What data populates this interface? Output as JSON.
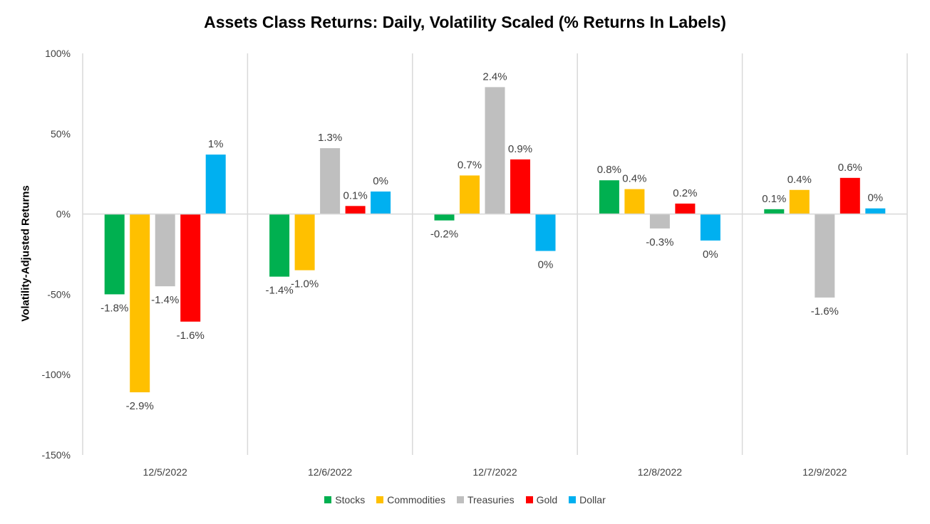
{
  "chart_data": {
    "type": "bar",
    "title": "Assets Class Returns: Daily, Volatility Scaled (% Returns In Labels)",
    "ylabel": "Volatility-Adjusted Returns",
    "xlabel": "",
    "categories": [
      "12/5/2022",
      "12/6/2022",
      "12/7/2022",
      "12/8/2022",
      "12/9/2022"
    ],
    "ylim": [
      -150,
      100
    ],
    "yticks": [
      100,
      50,
      0,
      -50,
      -100,
      -150
    ],
    "ytick_labels": [
      "100%",
      "50%",
      "0%",
      "-50%",
      "-100%",
      "-150%"
    ],
    "grid": false,
    "legend_position": "bottom",
    "series": [
      {
        "name": "Stocks",
        "color": "#00b050",
        "values": [
          -50,
          -39,
          -4,
          21,
          3
        ],
        "labels": [
          "-1.8%",
          "-1.4%",
          "-0.2%",
          "0.8%",
          "0.1%"
        ]
      },
      {
        "name": "Commodities",
        "color": "#ffc000",
        "values": [
          -111,
          -35,
          24,
          15.5,
          15
        ],
        "labels": [
          "-2.9%",
          "-1.0%",
          "0.7%",
          "0.4%",
          "0.4%"
        ]
      },
      {
        "name": "Treasuries",
        "color": "#bfbfbf",
        "values": [
          -45,
          41,
          79,
          -9,
          -52
        ],
        "labels": [
          "-1.4%",
          "1.3%",
          "2.4%",
          "-0.3%",
          "-1.6%"
        ]
      },
      {
        "name": "Gold",
        "color": "#ff0000",
        "values": [
          -67,
          5,
          34,
          6.5,
          22.5
        ],
        "labels": [
          "-1.6%",
          "0.1%",
          "0.9%",
          "0.2%",
          "0.6%"
        ]
      },
      {
        "name": "Dollar",
        "color": "#00b0f0",
        "values": [
          37,
          14,
          -23,
          -16.5,
          3.5
        ],
        "labels": [
          "1%",
          "0%",
          "0%",
          "0%",
          "0%"
        ]
      }
    ]
  }
}
